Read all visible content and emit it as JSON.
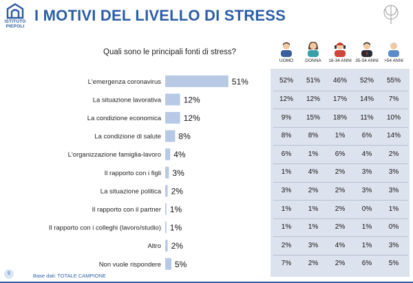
{
  "header": {
    "title": "I MOTIVI DEL LIVELLO DI STRESS",
    "logo_line1": "ISTITUTO",
    "logo_line2": "PIEPOLI"
  },
  "question": "Quali sono le principali fonti di stress?",
  "footer": {
    "page_number": "5",
    "base_note": "Base dati: TOTALE CAMPIONE"
  },
  "colors": {
    "bar": "#b8c9e6",
    "title": "#2b5ea6",
    "panel": "#dde3ee"
  },
  "columns": [
    {
      "label": "UOMO",
      "icon": "man-icon"
    },
    {
      "label": "DONNA",
      "icon": "woman-icon"
    },
    {
      "label": "18-34 ANNI",
      "icon": "young-person-icon"
    },
    {
      "label": "35-54 ANNI",
      "icon": "adult-man-icon"
    },
    {
      "label": ">54 ANNI",
      "icon": "senior-man-icon"
    }
  ],
  "chart_data": {
    "type": "bar",
    "orientation": "horizontal",
    "title": "Quali sono le principali fonti di stress?",
    "categories": [
      "L'emergenza coronavirus",
      "La situazione lavorativa",
      "La condizione economica",
      "La condizione di salute",
      "L'organizzazione famiglia-lavoro",
      "Il rapporto con i figli",
      "La situazione politica",
      "Il rapporto con il partner",
      "Il rapporto con i colleghi (lavoro/studio)",
      "Altro",
      "Non vuole rispondere"
    ],
    "values": [
      51,
      12,
      12,
      8,
      4,
      3,
      2,
      1,
      1,
      2,
      5
    ],
    "value_labels": [
      "51%",
      "12%",
      "12%",
      "8%",
      "4%",
      "3%",
      "2%",
      "1%",
      "1%",
      "2%",
      "5%"
    ],
    "unit": "%",
    "xlim": [
      0,
      60
    ]
  },
  "table": {
    "rows": [
      [
        "52%",
        "51%",
        "46%",
        "52%",
        "55%"
      ],
      [
        "12%",
        "12%",
        "17%",
        "14%",
        "7%"
      ],
      [
        "9%",
        "15%",
        "18%",
        "11%",
        "10%"
      ],
      [
        "8%",
        "8%",
        "1%",
        "6%",
        "14%"
      ],
      [
        "6%",
        "1%",
        "6%",
        "4%",
        "2%"
      ],
      [
        "1%",
        "4%",
        "2%",
        "3%",
        "3%"
      ],
      [
        "3%",
        "2%",
        "2%",
        "3%",
        "3%"
      ],
      [
        "1%",
        "1%",
        "2%",
        "0%",
        "1%"
      ],
      [
        "1%",
        "1%",
        "2%",
        "1%",
        "0%"
      ],
      [
        "2%",
        "3%",
        "4%",
        "1%",
        "3%"
      ],
      [
        "7%",
        "2%",
        "2%",
        "6%",
        "5%"
      ]
    ]
  }
}
